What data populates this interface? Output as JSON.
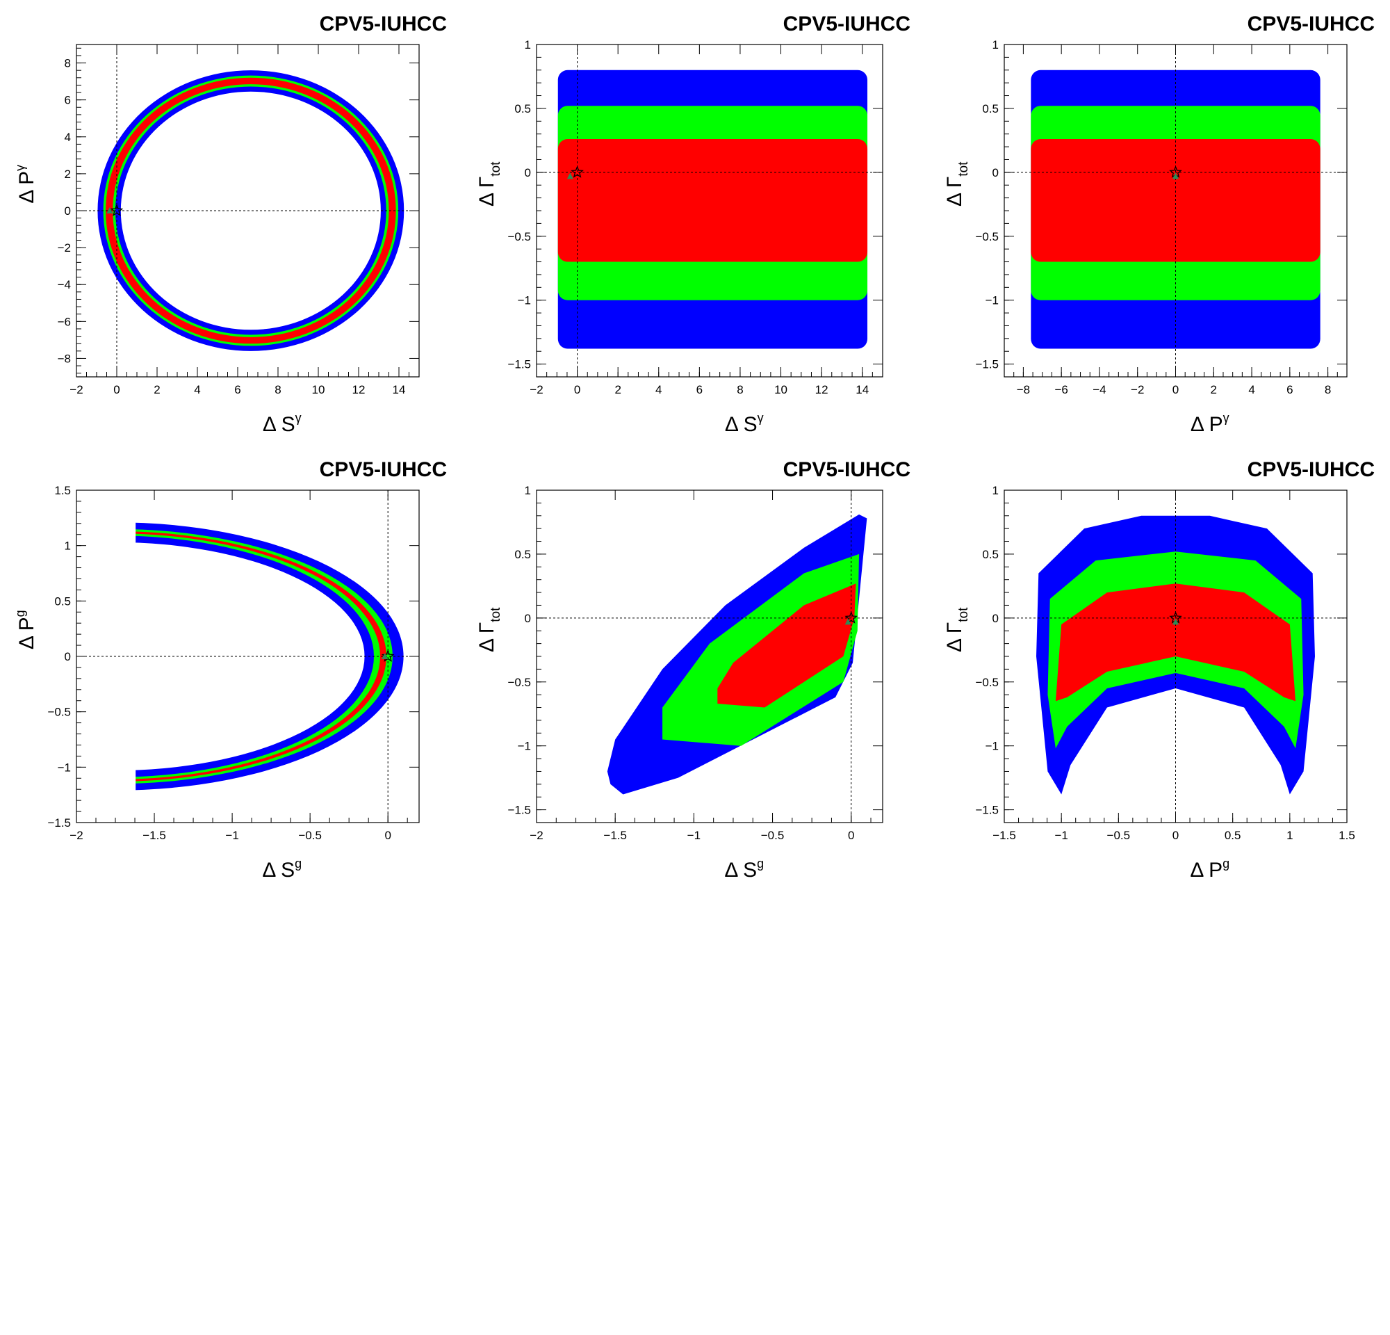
{
  "colors": {
    "outer": "#0000ff",
    "middle": "#00ff00",
    "inner": "#ff0000",
    "frame": "#000000",
    "reference_lines": "#000000"
  },
  "chart_data": [
    {
      "type": "scatter",
      "title": "CPV5-IUHCC",
      "xlabel": {
        "base": "Δ S",
        "sup": "γ",
        "sub": ""
      },
      "ylabel": {
        "base": "Δ P",
        "sup": "γ",
        "sub": ""
      },
      "xlim": [
        -2,
        15
      ],
      "ylim": [
        -9,
        9
      ],
      "xticks": [
        -2,
        0,
        2,
        4,
        6,
        8,
        10,
        12,
        14
      ],
      "yticks": [
        -8,
        -6,
        -4,
        -2,
        0,
        2,
        4,
        6,
        8
      ],
      "reference_lines": {
        "x": 0,
        "y": 0
      },
      "grid": false,
      "regions": [
        {
          "color": "outer",
          "shape": "ring",
          "center": [
            6.65,
            0.0
          ],
          "outer_radii": [
            7.6,
            7.6
          ],
          "inner_radii": [
            6.45,
            6.45
          ]
        },
        {
          "color": "middle",
          "shape": "ring",
          "center": [
            6.65,
            0.0
          ],
          "outer_radii": [
            7.32,
            7.32
          ],
          "inner_radii": [
            6.72,
            6.72
          ]
        },
        {
          "color": "inner",
          "shape": "ring",
          "center": [
            6.65,
            0.0
          ],
          "outer_radii": [
            7.2,
            7.2
          ],
          "inner_radii": [
            6.85,
            6.85
          ]
        }
      ],
      "markers": [
        {
          "symbol": "star",
          "x": 0,
          "y": 0
        },
        {
          "symbol": "triangle",
          "x": -0.35,
          "y": 0
        }
      ]
    },
    {
      "type": "scatter",
      "title": "CPV5-IUHCC",
      "xlabel": {
        "base": "Δ S",
        "sup": "γ",
        "sub": ""
      },
      "ylabel": {
        "base": "Δ Γ",
        "sup": "",
        "sub": "tot"
      },
      "xlim": [
        -2,
        15
      ],
      "ylim": [
        -1.6,
        1
      ],
      "xticks": [
        -2,
        0,
        2,
        4,
        6,
        8,
        10,
        12,
        14
      ],
      "yticks": [
        -1.5,
        -1,
        -0.5,
        0,
        0.5,
        1
      ],
      "reference_lines": {
        "x": 0,
        "y": 0
      },
      "grid": false,
      "regions": [
        {
          "color": "outer",
          "shape": "band",
          "x": [
            -0.95,
            14.25
          ],
          "y": [
            -1.38,
            0.8
          ]
        },
        {
          "color": "middle",
          "shape": "band",
          "x": [
            -0.95,
            14.25
          ],
          "y": [
            -1.0,
            0.52
          ]
        },
        {
          "color": "inner",
          "shape": "band",
          "x": [
            -0.95,
            14.25
          ],
          "y": [
            -0.7,
            0.26
          ]
        }
      ],
      "markers": [
        {
          "symbol": "star",
          "x": 0,
          "y": 0
        },
        {
          "symbol": "triangle",
          "x": -0.35,
          "y": -0.03
        }
      ]
    },
    {
      "type": "scatter",
      "title": "CPV5-IUHCC",
      "xlabel": {
        "base": "Δ P",
        "sup": "γ",
        "sub": ""
      },
      "ylabel": {
        "base": "Δ Γ",
        "sup": "",
        "sub": "tot"
      },
      "xlim": [
        -9,
        9
      ],
      "ylim": [
        -1.6,
        1
      ],
      "xticks": [
        -8,
        -6,
        -4,
        -2,
        0,
        2,
        4,
        6,
        8
      ],
      "yticks": [
        -1.5,
        -1,
        -0.5,
        0,
        0.5,
        1
      ],
      "reference_lines": {
        "x": 0,
        "y": 0
      },
      "grid": false,
      "regions": [
        {
          "color": "outer",
          "shape": "band",
          "x": [
            -7.6,
            7.6
          ],
          "y": [
            -1.38,
            0.8
          ]
        },
        {
          "color": "middle",
          "shape": "band",
          "x": [
            -7.6,
            7.6
          ],
          "y": [
            -1.0,
            0.52
          ]
        },
        {
          "color": "inner",
          "shape": "band",
          "x": [
            -7.6,
            7.6
          ],
          "y": [
            -0.7,
            0.26
          ]
        }
      ],
      "markers": [
        {
          "symbol": "star",
          "x": 0,
          "y": 0
        },
        {
          "symbol": "triangle",
          "x": 0,
          "y": -0.03
        }
      ]
    },
    {
      "type": "scatter",
      "title": "CPV5-IUHCC",
      "xlabel": {
        "base": "Δ S",
        "sup": "g",
        "sub": ""
      },
      "ylabel": {
        "base": "Δ P",
        "sup": "g",
        "sub": ""
      },
      "xlim": [
        -2,
        0.2
      ],
      "ylim": [
        -1.5,
        1.5
      ],
      "xticks": [
        -2,
        -1.5,
        -1,
        -0.5,
        0
      ],
      "yticks": [
        -1.5,
        -1,
        -0.5,
        0,
        0.5,
        1,
        1.5
      ],
      "reference_lines": {
        "x": 0,
        "y": 0
      },
      "grid": false,
      "regions": [
        {
          "color": "outer",
          "shape": "crescent",
          "center": [
            -1.75,
            0.0
          ],
          "outer_radii": [
            1.85,
            1.21
          ],
          "inner_radii": [
            1.6,
            1.03
          ]
        },
        {
          "color": "middle",
          "shape": "crescent",
          "center": [
            -1.75,
            0.0
          ],
          "outer_radii": [
            1.78,
            1.15
          ],
          "inner_radii": [
            1.66,
            1.09
          ]
        },
        {
          "color": "inner",
          "shape": "crescent",
          "center": [
            -1.75,
            0.0
          ],
          "outer_radii": [
            1.74,
            1.13
          ],
          "inner_radii": [
            1.7,
            1.11
          ]
        }
      ],
      "markers": [
        {
          "symbol": "star",
          "x": 0,
          "y": 0
        },
        {
          "symbol": "triangle",
          "x": -0.02,
          "y": 0
        }
      ]
    },
    {
      "type": "scatter",
      "title": "CPV5-IUHCC",
      "xlabel": {
        "base": "Δ S",
        "sup": "g",
        "sub": ""
      },
      "ylabel": {
        "base": "Δ Γ",
        "sup": "",
        "sub": "tot"
      },
      "xlim": [
        -2,
        0.2
      ],
      "ylim": [
        -1.6,
        1
      ],
      "xticks": [
        -2,
        -1.5,
        -1,
        -0.5,
        0
      ],
      "yticks": [
        -1.5,
        -1,
        -0.5,
        0,
        0.5,
        1
      ],
      "reference_lines": {
        "x": 0,
        "y": 0
      },
      "grid": false,
      "regions": [
        {
          "color": "outer",
          "shape": "polygon",
          "points": [
            [
              -1.53,
              -1.3
            ],
            [
              -1.45,
              -1.38
            ],
            [
              -1.1,
              -1.25
            ],
            [
              -0.1,
              -0.62
            ],
            [
              0.01,
              -0.35
            ],
            [
              0.05,
              0.15
            ],
            [
              0.1,
              0.78
            ],
            [
              0.05,
              0.81
            ],
            [
              -0.3,
              0.55
            ],
            [
              -0.8,
              0.1
            ],
            [
              -1.2,
              -0.4
            ],
            [
              -1.5,
              -0.95
            ],
            [
              -1.55,
              -1.2
            ]
          ]
        },
        {
          "color": "middle",
          "shape": "polygon",
          "points": [
            [
              -1.2,
              -0.95
            ],
            [
              -0.7,
              -1.0
            ],
            [
              -0.05,
              -0.5
            ],
            [
              0.04,
              -0.1
            ],
            [
              0.05,
              0.5
            ],
            [
              -0.3,
              0.35
            ],
            [
              -0.9,
              -0.2
            ],
            [
              -1.2,
              -0.7
            ]
          ]
        },
        {
          "color": "inner",
          "shape": "polygon",
          "points": [
            [
              -0.85,
              -0.67
            ],
            [
              -0.55,
              -0.7
            ],
            [
              -0.05,
              -0.3
            ],
            [
              0.02,
              0.0
            ],
            [
              0.03,
              0.27
            ],
            [
              -0.3,
              0.1
            ],
            [
              -0.75,
              -0.35
            ],
            [
              -0.85,
              -0.55
            ]
          ]
        }
      ],
      "markers": [
        {
          "symbol": "star",
          "x": 0,
          "y": 0
        },
        {
          "symbol": "triangle",
          "x": -0.02,
          "y": -0.03
        }
      ]
    },
    {
      "type": "scatter",
      "title": "CPV5-IUHCC",
      "xlabel": {
        "base": "Δ P",
        "sup": "g",
        "sub": ""
      },
      "ylabel": {
        "base": "Δ Γ",
        "sup": "",
        "sub": "tot"
      },
      "xlim": [
        -1.5,
        1.5
      ],
      "ylim": [
        -1.6,
        1
      ],
      "xticks": [
        -1.5,
        -1,
        -0.5,
        0,
        0.5,
        1,
        1.5
      ],
      "yticks": [
        -1.5,
        -1,
        -0.5,
        0,
        0.5,
        1
      ],
      "reference_lines": {
        "x": 0,
        "y": 0
      },
      "grid": false,
      "regions": [
        {
          "color": "outer",
          "shape": "polygon",
          "points": [
            [
              -1.2,
              0.35
            ],
            [
              -0.8,
              0.7
            ],
            [
              -0.3,
              0.8
            ],
            [
              0.3,
              0.8
            ],
            [
              0.8,
              0.7
            ],
            [
              1.2,
              0.35
            ],
            [
              1.22,
              -0.3
            ],
            [
              1.12,
              -1.2
            ],
            [
              1.0,
              -1.38
            ],
            [
              0.92,
              -1.15
            ],
            [
              0.6,
              -0.7
            ],
            [
              0.0,
              -0.55
            ],
            [
              -0.6,
              -0.7
            ],
            [
              -0.92,
              -1.15
            ],
            [
              -1.0,
              -1.38
            ],
            [
              -1.12,
              -1.2
            ],
            [
              -1.22,
              -0.3
            ]
          ]
        },
        {
          "color": "middle",
          "shape": "polygon",
          "points": [
            [
              -1.1,
              0.15
            ],
            [
              -0.7,
              0.45
            ],
            [
              0.0,
              0.52
            ],
            [
              0.7,
              0.45
            ],
            [
              1.1,
              0.15
            ],
            [
              1.12,
              -0.6
            ],
            [
              1.05,
              -1.02
            ],
            [
              0.95,
              -0.85
            ],
            [
              0.6,
              -0.55
            ],
            [
              0.0,
              -0.43
            ],
            [
              -0.6,
              -0.55
            ],
            [
              -0.95,
              -0.85
            ],
            [
              -1.05,
              -1.02
            ],
            [
              -1.12,
              -0.6
            ]
          ]
        },
        {
          "color": "inner",
          "shape": "polygon",
          "points": [
            [
              -1.0,
              -0.05
            ],
            [
              -0.6,
              0.2
            ],
            [
              0.0,
              0.27
            ],
            [
              0.6,
              0.2
            ],
            [
              1.0,
              -0.05
            ],
            [
              1.05,
              -0.65
            ],
            [
              0.95,
              -0.62
            ],
            [
              0.6,
              -0.42
            ],
            [
              0.0,
              -0.3
            ],
            [
              -0.6,
              -0.42
            ],
            [
              -0.95,
              -0.62
            ],
            [
              -1.05,
              -0.65
            ]
          ]
        }
      ],
      "markers": [
        {
          "symbol": "star",
          "x": 0,
          "y": 0
        },
        {
          "symbol": "triangle",
          "x": 0,
          "y": -0.03
        }
      ]
    }
  ]
}
